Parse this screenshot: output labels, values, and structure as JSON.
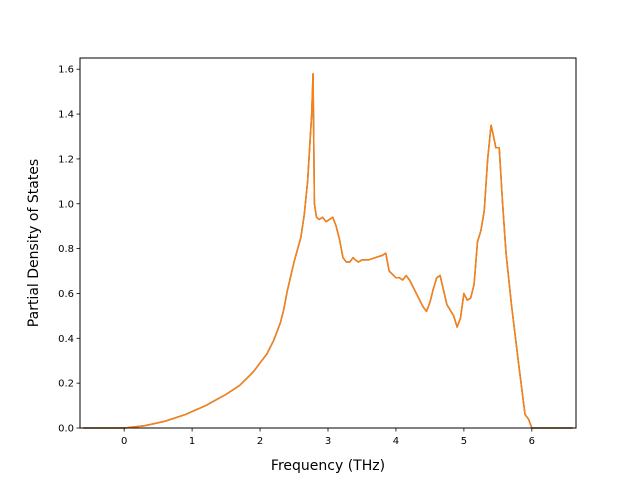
{
  "chart_data": {
    "type": "line",
    "title": "",
    "xlabel": "Frequency (THz)",
    "ylabel": "Partial Density of States",
    "xlim": [
      -0.65,
      6.65
    ],
    "ylim": [
      0.0,
      1.65
    ],
    "xticks": [
      0,
      1,
      2,
      3,
      4,
      5,
      6
    ],
    "yticks": [
      0.0,
      0.2,
      0.4,
      0.6,
      0.8,
      1.0,
      1.2,
      1.4,
      1.6
    ],
    "xtick_labels": [
      "0",
      "1",
      "2",
      "3",
      "4",
      "5",
      "6"
    ],
    "ytick_labels": [
      "0.0",
      "0.2",
      "0.4",
      "0.6",
      "0.8",
      "1.0",
      "1.2",
      "1.4",
      "1.6"
    ],
    "grid": false,
    "legend": "none",
    "series": [
      {
        "color": "#1f77b4",
        "x": [
          -0.6,
          0.0,
          0.3,
          0.6,
          0.9,
          1.2,
          1.5,
          1.7,
          1.8,
          1.9,
          2.0,
          2.1,
          2.2,
          2.3,
          2.35,
          2.4,
          2.5,
          2.6,
          2.65,
          2.7,
          2.73,
          2.76,
          2.78,
          2.8,
          2.83,
          2.87,
          2.92,
          2.97,
          3.02,
          3.07,
          3.12,
          3.17,
          3.22,
          3.27,
          3.32,
          3.37,
          3.4,
          3.45,
          3.5,
          3.6,
          3.7,
          3.8,
          3.85,
          3.9,
          4.0,
          4.05,
          4.1,
          4.15,
          4.2,
          4.3,
          4.4,
          4.45,
          4.5,
          4.55,
          4.6,
          4.65,
          4.75,
          4.85,
          4.9,
          4.95,
          5.0,
          5.05,
          5.1,
          5.15,
          5.2,
          5.25,
          5.3,
          5.35,
          5.4,
          5.43,
          5.47,
          5.52,
          5.57,
          5.62,
          5.7,
          5.8,
          5.9,
          5.95,
          6.0,
          6.05,
          6.2,
          6.6
        ],
        "y": [
          0.0,
          0.0,
          0.01,
          0.03,
          0.06,
          0.1,
          0.15,
          0.19,
          0.22,
          0.25,
          0.29,
          0.33,
          0.39,
          0.47,
          0.53,
          0.61,
          0.74,
          0.85,
          0.95,
          1.1,
          1.25,
          1.4,
          1.58,
          1.0,
          0.94,
          0.93,
          0.94,
          0.92,
          0.93,
          0.94,
          0.9,
          0.84,
          0.76,
          0.74,
          0.74,
          0.76,
          0.75,
          0.74,
          0.75,
          0.75,
          0.76,
          0.77,
          0.78,
          0.7,
          0.67,
          0.67,
          0.66,
          0.68,
          0.66,
          0.6,
          0.54,
          0.52,
          0.56,
          0.62,
          0.67,
          0.68,
          0.55,
          0.5,
          0.45,
          0.49,
          0.6,
          0.57,
          0.58,
          0.64,
          0.83,
          0.88,
          0.97,
          1.2,
          1.35,
          1.31,
          1.25,
          1.25,
          1.0,
          0.78,
          0.55,
          0.3,
          0.06,
          0.04,
          0.0,
          0.0,
          0.0,
          0.0
        ]
      },
      {
        "color": "#ff7f0e",
        "x": [
          -0.6,
          0.0,
          0.3,
          0.6,
          0.9,
          1.2,
          1.5,
          1.7,
          1.8,
          1.9,
          2.0,
          2.1,
          2.2,
          2.3,
          2.35,
          2.4,
          2.5,
          2.6,
          2.65,
          2.7,
          2.73,
          2.76,
          2.78,
          2.8,
          2.83,
          2.87,
          2.92,
          2.97,
          3.02,
          3.07,
          3.12,
          3.17,
          3.22,
          3.27,
          3.32,
          3.37,
          3.4,
          3.45,
          3.5,
          3.6,
          3.7,
          3.8,
          3.85,
          3.9,
          4.0,
          4.05,
          4.1,
          4.15,
          4.2,
          4.3,
          4.4,
          4.45,
          4.5,
          4.55,
          4.6,
          4.65,
          4.75,
          4.85,
          4.9,
          4.95,
          5.0,
          5.05,
          5.1,
          5.15,
          5.2,
          5.25,
          5.3,
          5.35,
          5.4,
          5.43,
          5.47,
          5.52,
          5.57,
          5.62,
          5.7,
          5.8,
          5.9,
          5.95,
          6.0,
          6.05,
          6.2,
          6.6
        ],
        "y": [
          0.0,
          0.0,
          0.01,
          0.03,
          0.06,
          0.1,
          0.15,
          0.19,
          0.22,
          0.25,
          0.29,
          0.33,
          0.39,
          0.47,
          0.53,
          0.61,
          0.74,
          0.85,
          0.95,
          1.1,
          1.25,
          1.4,
          1.58,
          1.0,
          0.94,
          0.93,
          0.94,
          0.92,
          0.93,
          0.94,
          0.9,
          0.84,
          0.76,
          0.74,
          0.74,
          0.76,
          0.75,
          0.74,
          0.75,
          0.75,
          0.76,
          0.77,
          0.78,
          0.7,
          0.67,
          0.67,
          0.66,
          0.68,
          0.66,
          0.6,
          0.54,
          0.52,
          0.56,
          0.62,
          0.67,
          0.68,
          0.55,
          0.5,
          0.45,
          0.49,
          0.6,
          0.57,
          0.58,
          0.64,
          0.83,
          0.88,
          0.97,
          1.2,
          1.35,
          1.31,
          1.25,
          1.25,
          1.0,
          0.78,
          0.55,
          0.3,
          0.06,
          0.04,
          0.0,
          0.0,
          0.0,
          0.0
        ]
      }
    ]
  }
}
